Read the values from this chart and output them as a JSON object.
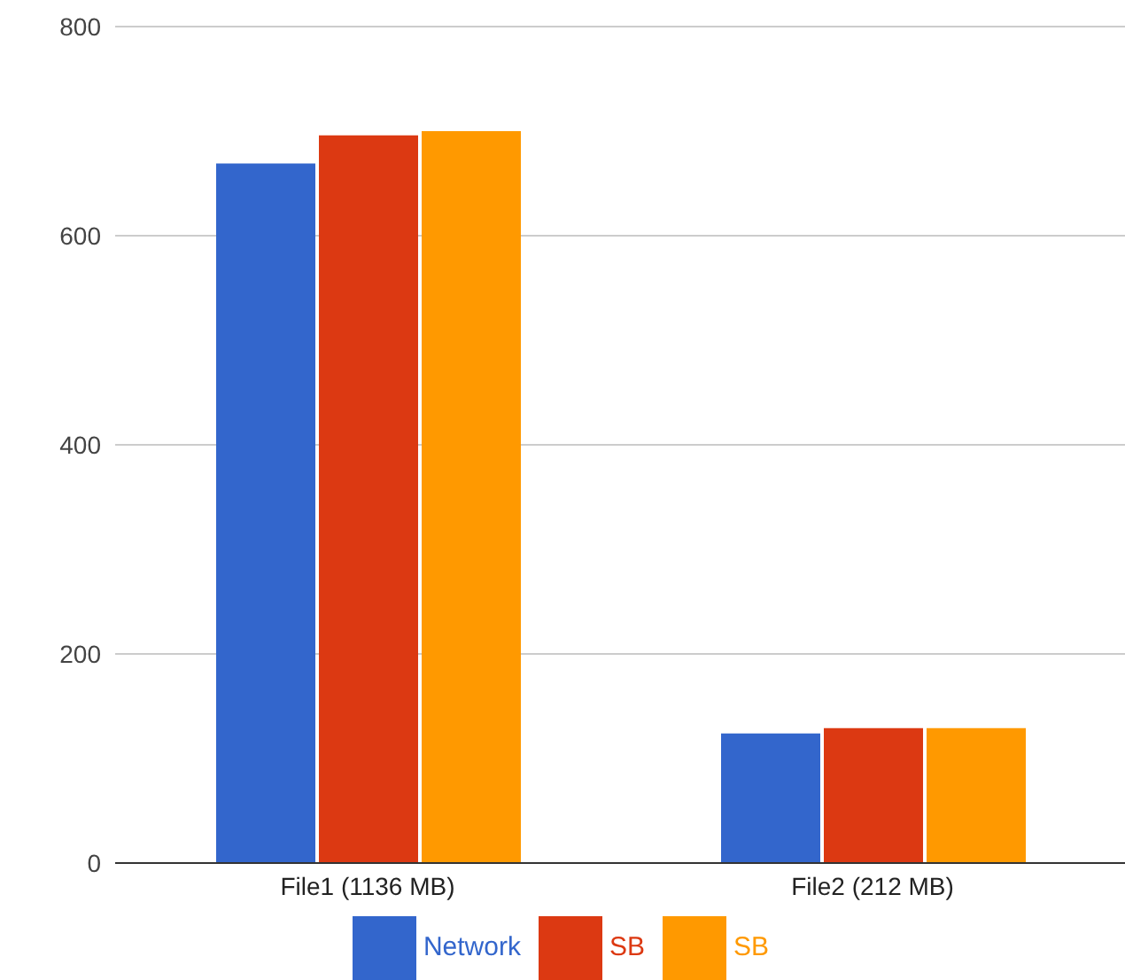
{
  "chart_data": {
    "type": "bar",
    "categories": [
      "File1 (1136 MB)",
      "File2 (212 MB)"
    ],
    "series": [
      {
        "name": "Network",
        "color": "#3366cc",
        "values": [
          669,
          124
        ]
      },
      {
        "name": "SB",
        "color": "#dc3912",
        "values": [
          696,
          129
        ]
      },
      {
        "name": "SB",
        "color": "#ff9900",
        "values": [
          700,
          129
        ]
      }
    ],
    "ylim": [
      0,
      800
    ],
    "yticks": [
      0,
      200,
      400,
      600,
      800
    ],
    "grid": "y",
    "legend": "bottom"
  }
}
